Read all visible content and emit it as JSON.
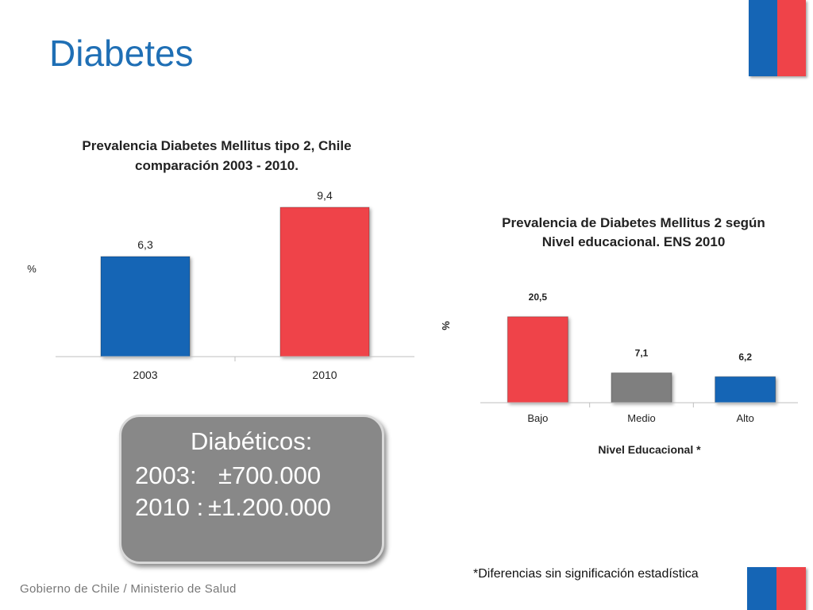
{
  "slide": {
    "title": "Diabetes",
    "footer": "Gobierno de Chile / Ministerio de Salud",
    "note": "*Diferencias sin significación estadística",
    "callout": {
      "heading": "Diabéticos:",
      "line1_label": "2003:",
      "line1_value": "±700.000",
      "line2_label": "2010 :",
      "line2_value": "±1.200.000"
    },
    "colors": {
      "blue": "#1565b5",
      "red": "#ef4349",
      "gray": "#7f7f7f",
      "title": "#1f6fb5"
    }
  },
  "chart_data": [
    {
      "type": "bar",
      "title_line1": "Prevalencia Diabetes Mellitus tipo 2, Chile",
      "title_line2": "comparación 2003 - 2010.",
      "ylabel": "%",
      "xlabel": "",
      "categories": [
        "2003",
        "2010"
      ],
      "values": [
        6.3,
        9.4
      ],
      "value_labels": [
        "6,3",
        "9,4"
      ],
      "bar_colors": [
        "#1565b5",
        "#ef4349"
      ],
      "ylim": [
        0,
        10
      ],
      "grid": false
    },
    {
      "type": "bar",
      "title_line1": "Prevalencia de Diabetes Mellitus 2 según",
      "title_line2": "Nivel educacional. ENS 2010",
      "ylabel": "%",
      "xlabel": "Nivel Educacional *",
      "categories": [
        "Bajo",
        "Medio",
        "Alto"
      ],
      "values": [
        20.5,
        7.1,
        6.2
      ],
      "value_labels": [
        "20,5",
        "7,1",
        "6,2"
      ],
      "bar_colors": [
        "#ef4349",
        "#7f7f7f",
        "#1565b5"
      ],
      "ylim": [
        0,
        25
      ],
      "grid": false
    }
  ]
}
